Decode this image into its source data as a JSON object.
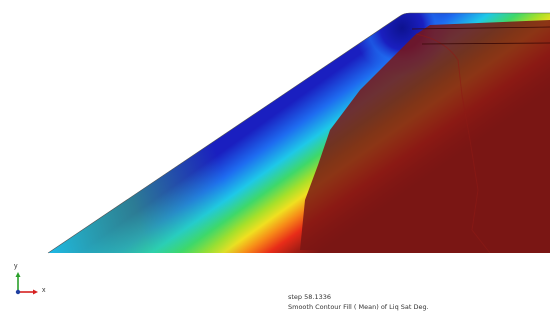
{
  "plot": {
    "step_label": "step 58.1336",
    "description": "Smooth Contour Fill ( Mean) of Liq Sat Deg."
  },
  "axes_triad": {
    "y_label": "y",
    "x_label": "x",
    "y_color": "#2aa02a",
    "x_color": "#d62020",
    "origin_color": "#2040a0"
  },
  "colors": {
    "saturated": "#7a1614",
    "dry": "#1a1fc0"
  }
}
